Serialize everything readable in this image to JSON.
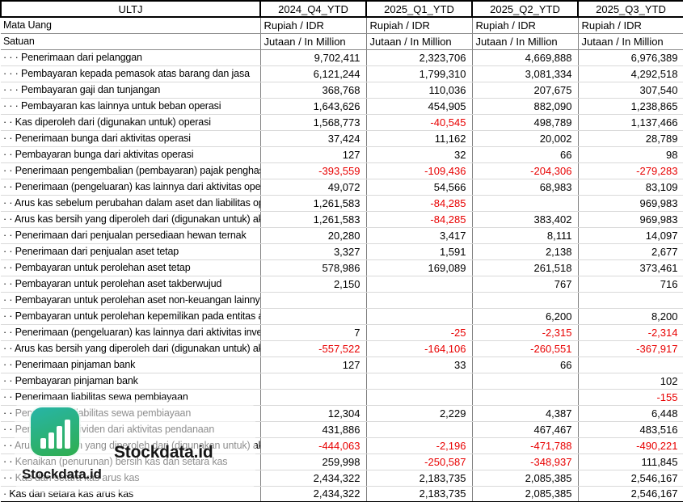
{
  "table": {
    "corner": "ULTJ",
    "columns": [
      "2024_Q4_YTD",
      "2025_Q1_YTD",
      "2025_Q2_YTD",
      "2025_Q3_YTD"
    ],
    "meta_rows": [
      {
        "label": "Mata Uang",
        "values": [
          "Rupiah / IDR",
          "Rupiah / IDR",
          "Rupiah / IDR",
          "Rupiah / IDR"
        ]
      },
      {
        "label": "Satuan",
        "values": [
          "Jutaan / In Million",
          "Jutaan / In Million",
          "Jutaan / In Million",
          "Jutaan / In Million"
        ]
      }
    ],
    "rows": [
      {
        "label": "· · · Penerimaan dari pelanggan",
        "values": [
          "9,702,411",
          "2,323,706",
          "4,669,888",
          "6,976,389"
        ]
      },
      {
        "label": "· · · Pembayaran kepada pemasok atas barang dan jasa",
        "values": [
          "6,121,244",
          "1,799,310",
          "3,081,334",
          "4,292,518"
        ]
      },
      {
        "label": "· · · Pembayaran gaji dan tunjangan",
        "values": [
          "368,768",
          "110,036",
          "207,675",
          "307,540"
        ]
      },
      {
        "label": "· · · Pembayaran kas lainnya untuk beban operasi",
        "values": [
          "1,643,626",
          "454,905",
          "882,090",
          "1,238,865"
        ]
      },
      {
        "label": "· · Kas diperoleh dari (digunakan untuk) operasi",
        "values": [
          "1,568,773",
          "-40,545",
          "498,789",
          "1,137,466"
        ]
      },
      {
        "label": "· · Penerimaan bunga dari aktivitas operasi",
        "values": [
          "37,424",
          "11,162",
          "20,002",
          "28,789"
        ]
      },
      {
        "label": "· · Pembayaran bunga dari aktivitas operasi",
        "values": [
          "127",
          "32",
          "66",
          "98"
        ]
      },
      {
        "label": "· · Penerimaan pengembalian (pembayaran) pajak penghasilan",
        "values": [
          "-393,559",
          "-109,436",
          "-204,306",
          "-279,283"
        ]
      },
      {
        "label": "· · Penerimaan (pengeluaran) kas lainnya dari aktivitas operasi",
        "values": [
          "49,072",
          "54,566",
          "68,983",
          "83,109"
        ]
      },
      {
        "label": "· · Arus kas sebelum perubahan dalam aset dan liabilitas operasi",
        "values": [
          "1,261,583",
          "-84,285",
          "",
          "969,983"
        ]
      },
      {
        "label": "· · Arus kas bersih yang diperoleh dari (digunakan untuk) aktivitas operasi",
        "values": [
          "1,261,583",
          "-84,285",
          "383,402",
          "969,983"
        ]
      },
      {
        "label": "· · Penerimaan dari penjualan persediaan hewan ternak",
        "values": [
          "20,280",
          "3,417",
          "8,111",
          "14,097"
        ]
      },
      {
        "label": "· · Penerimaan dari penjualan aset tetap",
        "values": [
          "3,327",
          "1,591",
          "2,138",
          "2,677"
        ]
      },
      {
        "label": "· · Pembayaran untuk perolehan aset tetap",
        "values": [
          "578,986",
          "169,089",
          "261,518",
          "373,461"
        ]
      },
      {
        "label": "· · Pembayaran untuk perolehan aset takberwujud",
        "values": [
          "2,150",
          "",
          "767",
          "716"
        ]
      },
      {
        "label": "· · Pembayaran untuk perolehan aset non-keuangan lainnya",
        "values": [
          "",
          "",
          "",
          ""
        ]
      },
      {
        "label": "· · Pembayaran untuk perolehan kepemilikan pada entitas asosiasi",
        "values": [
          "",
          "",
          "6,200",
          "8,200"
        ]
      },
      {
        "label": "· · Penerimaan (pengeluaran) kas lainnya dari aktivitas investasi",
        "values": [
          "7",
          "-25",
          "-2,315",
          "-2,314"
        ]
      },
      {
        "label": "· · Arus kas bersih yang diperoleh dari (digunakan untuk) aktivitas investasi",
        "values": [
          "-557,522",
          "-164,106",
          "-260,551",
          "-367,917"
        ]
      },
      {
        "label": "· · Penerimaan pinjaman bank",
        "values": [
          "127",
          "33",
          "66",
          ""
        ]
      },
      {
        "label": "· · Pembayaran pinjaman bank",
        "values": [
          "",
          "",
          "",
          "102"
        ]
      },
      {
        "label": "· · Penerimaan liabilitas sewa pembiayaan",
        "values": [
          "",
          "",
          "",
          "-155"
        ]
      },
      {
        "label": "· · Pembayaran liabilitas sewa pembiayaan",
        "values": [
          "12,304",
          "2,229",
          "4,387",
          "6,448"
        ]
      },
      {
        "label": "· · Pembayaran dividen dari aktivitas pendanaan",
        "values": [
          "431,886",
          "",
          "467,467",
          "483,516"
        ]
      },
      {
        "label": "· · Arus kas bersih yang diperoleh dari (digunakan untuk) aktivitas pendanaan",
        "values": [
          "-444,063",
          "-2,196",
          "-471,788",
          "-490,221"
        ]
      },
      {
        "label": "· · Kenaikan (penurunan) bersih kas dan setara kas",
        "values": [
          "259,998",
          "-250,587",
          "-348,937",
          "111,845"
        ]
      },
      {
        "label": "· · Kas dan setara kas arus kas",
        "values": [
          "2,434,322",
          "2,183,735",
          "2,085,385",
          "2,546,167"
        ]
      },
      {
        "label": "· Kas dan setara kas arus kas",
        "values": [
          "2,434,322",
          "2,183,735",
          "2,085,385",
          "2,546,167"
        ]
      }
    ]
  },
  "watermark": {
    "brand": "Stockdata.id",
    "brand_small": "Stockdata.id",
    "icon": "bar-chart-icon"
  },
  "colors": {
    "negative": "#e80000",
    "watermark_teal": "#27b5a8",
    "watermark_green": "#2fae4e",
    "grid_light": "#d9d9d9",
    "grid_dark": "#7f7f7f",
    "border": "#000000"
  }
}
